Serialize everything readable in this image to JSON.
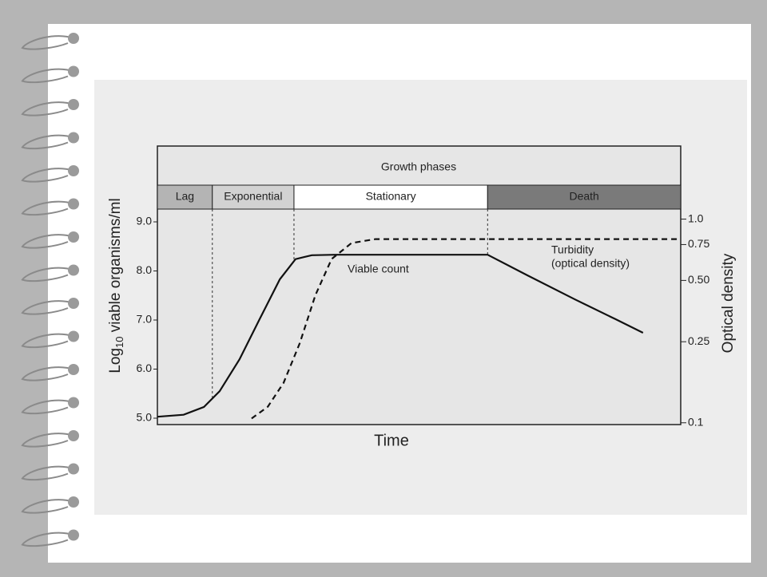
{
  "chart_data": {
    "type": "line",
    "xlabel": "Time",
    "ylabel": {
      "prefix": "Log",
      "subscript": "10",
      "rest": " viable organisms/ml"
    },
    "y2label": "Optical density",
    "header": "Growth phases",
    "xlim": [
      0,
      100
    ],
    "ylim": [
      4.87,
      9.26
    ],
    "yticks": [
      {
        "value": 5,
        "label": "5.0"
      },
      {
        "value": 6,
        "label": "6.0"
      },
      {
        "value": 7,
        "label": "7.0"
      },
      {
        "value": 8,
        "label": "8.0"
      },
      {
        "value": 9,
        "label": "9.0"
      }
    ],
    "y2lim": [
      0.098,
      1.12
    ],
    "y2scale": "log",
    "y2ticks": [
      0.1,
      0.25,
      {
        "value": 0.5,
        "label": "0.50"
      },
      0.75,
      {
        "value": 1,
        "label": "1.0"
      }
    ],
    "phases": [
      {
        "name": "Lag",
        "from": 0,
        "to": 10.5,
        "color": "#b4b4b4"
      },
      {
        "name": "Exponential",
        "from": 10.5,
        "to": 26.1,
        "color": "#d2d2d2"
      },
      {
        "name": "Stationary",
        "from": 26.1,
        "to": 63.1,
        "color": "#ffffff"
      },
      {
        "name": "Death",
        "from": 63.1,
        "to": 100,
        "color": "#7a7a7a"
      }
    ],
    "series": [
      {
        "name": "Viable count",
        "color": "#111111",
        "dash": false,
        "axis": "y",
        "x": [
          0,
          5.0,
          8.9,
          11.9,
          15.7,
          19.5,
          23.4,
          26.4,
          29.5,
          34.0,
          63.1,
          70.7,
          79.8,
          87.5,
          92.8
        ],
        "values": [
          5.03,
          5.07,
          5.23,
          5.55,
          6.2,
          7.01,
          7.83,
          8.24,
          8.32,
          8.33,
          8.33,
          7.91,
          7.42,
          7.02,
          6.74
        ]
      },
      {
        "name": "Turbidity",
        "color": "#111111",
        "dash": true,
        "axis": "y2",
        "x": [
          18.0,
          21.1,
          24.1,
          27.2,
          30.2,
          33.3,
          37.1,
          41.7,
          100
        ],
        "values": [
          0.105,
          0.12,
          0.157,
          0.246,
          0.424,
          0.637,
          0.763,
          0.798,
          0.798
        ]
      }
    ],
    "annotations": [
      "Viable count",
      "Turbidity",
      "(optical density)"
    ]
  }
}
